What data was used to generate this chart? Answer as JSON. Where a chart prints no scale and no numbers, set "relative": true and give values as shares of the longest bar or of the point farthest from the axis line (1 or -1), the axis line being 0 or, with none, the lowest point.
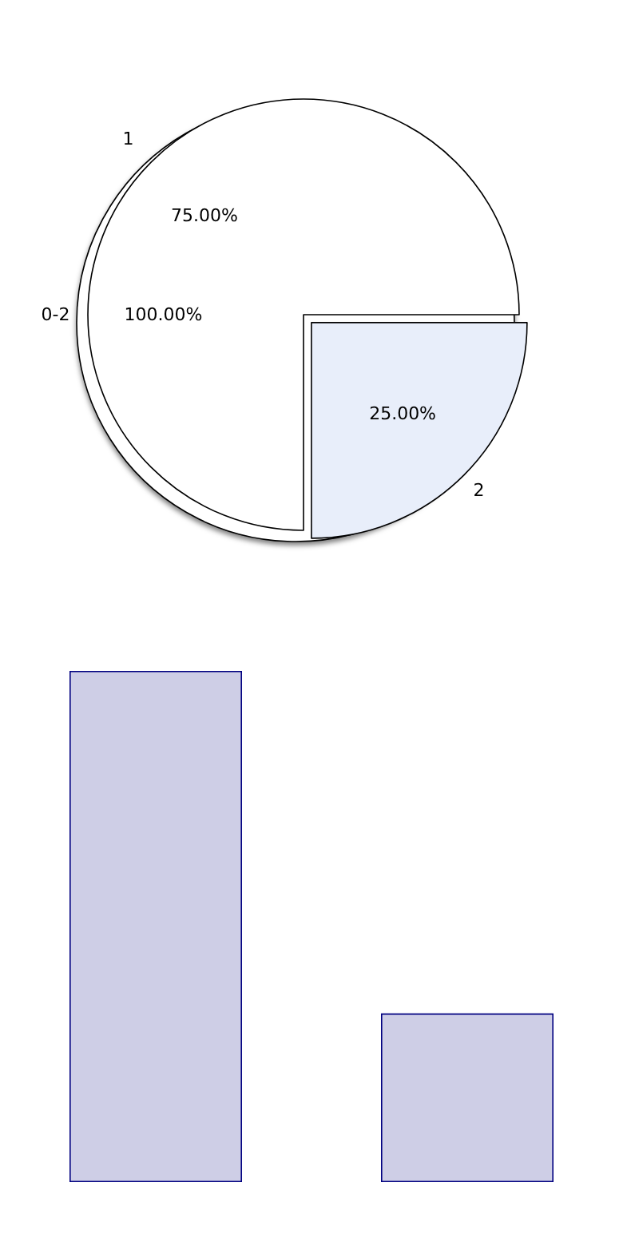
{
  "chart_data": [
    {
      "type": "pie",
      "categories": [
        "0-2"
      ],
      "values": [
        100
      ],
      "value_labels": [
        "100.00%"
      ],
      "colors": [
        "#ffffff"
      ]
    },
    {
      "type": "pie",
      "categories": [
        "1",
        "2"
      ],
      "values": [
        75,
        25
      ],
      "value_labels": [
        "75.00%",
        "25.00%"
      ],
      "colors": [
        "#ffffff",
        "#e8eefa"
      ]
    },
    {
      "type": "bar",
      "categories": [
        null,
        null
      ],
      "values": [
        1,
        0.33
      ],
      "color": "#ceceE6",
      "relative": true
    }
  ]
}
